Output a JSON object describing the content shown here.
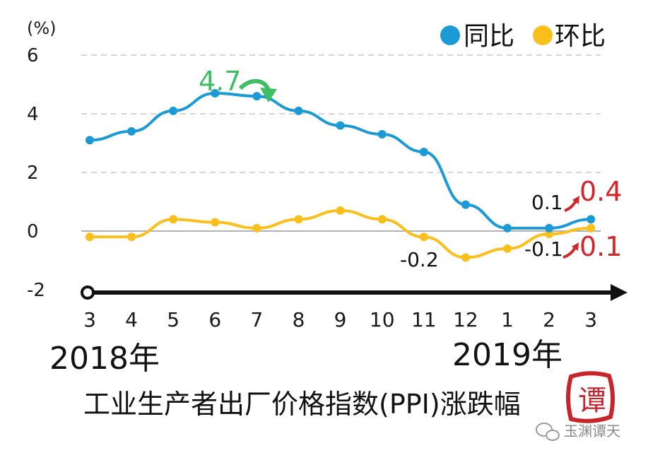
{
  "chart_data": {
    "type": "line",
    "title": "工业生产者出厂价格指数(PPI)涨跌幅",
    "ylabel": "(%)",
    "ylim": [
      -2,
      6
    ],
    "y_ticks": [
      "6",
      "4",
      "2",
      "0",
      "-2"
    ],
    "y_tick_values": [
      6,
      4,
      2,
      0,
      -2
    ],
    "categories": [
      "3",
      "4",
      "5",
      "6",
      "7",
      "8",
      "9",
      "10",
      "11",
      "12",
      "1",
      "2",
      "3"
    ],
    "year_labels": [
      "2018年",
      "2019年"
    ],
    "grid": "dashed horizontal",
    "legend_position": "top-right",
    "series": [
      {
        "name": "同比",
        "color": "#1b9ad6",
        "values": [
          3.1,
          3.4,
          4.1,
          4.7,
          4.6,
          4.1,
          3.6,
          3.3,
          2.7,
          0.9,
          0.1,
          0.1,
          0.4
        ]
      },
      {
        "name": "环比",
        "color": "#fbbf1b",
        "values": [
          -0.2,
          -0.2,
          0.4,
          0.3,
          0.1,
          0.4,
          0.7,
          0.4,
          -0.2,
          -0.9,
          -0.6,
          -0.1,
          0.1
        ]
      }
    ],
    "annotations": {
      "peak": {
        "text": "4.7",
        "color": "#3fbf63"
      },
      "yoy_prev": {
        "text": "0.1"
      },
      "yoy_last": {
        "text": "0.4",
        "color": "#d1262c"
      },
      "mom_low": {
        "text": "-0.2"
      },
      "mom_prev": {
        "text": "-0.1"
      },
      "mom_last": {
        "text": "0.1",
        "color": "#d1262c"
      }
    }
  },
  "watermark": {
    "seal_text": "谭",
    "account": "玉渊谭天"
  }
}
